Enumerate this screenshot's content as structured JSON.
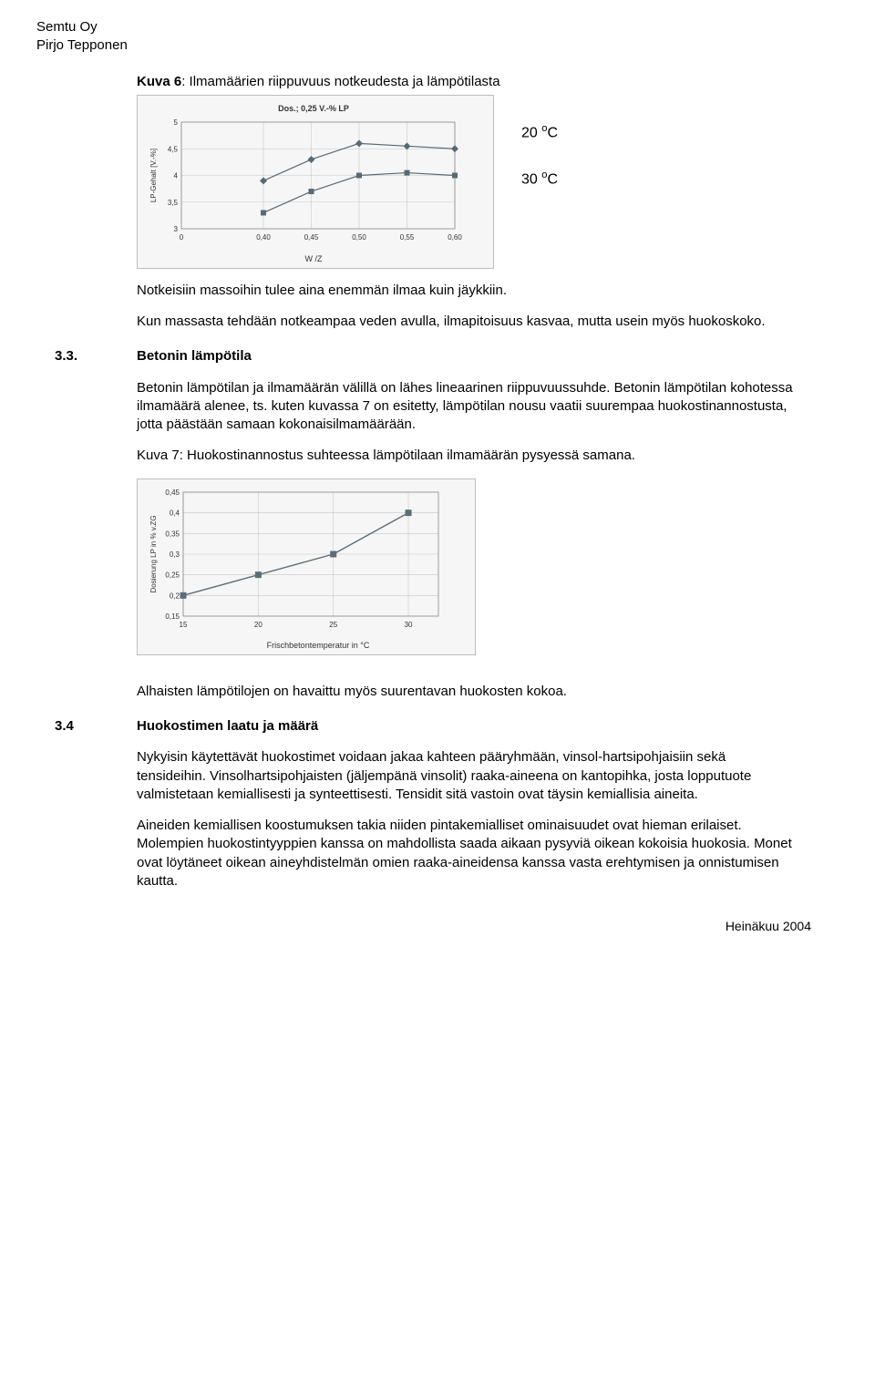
{
  "header": {
    "company": "Semtu Oy",
    "author": "Pirjo Tepponen"
  },
  "kuva6": {
    "label": "Kuva 6",
    "title": ": Ilmamäärien riippuvuus notkeudesta ja lämpötilasta",
    "subtitle": "Dos.; 0,25 V.-% LP",
    "ylabel": "LP-Gehalt [V.-%]",
    "xlabel": "W /Z",
    "xlim": [
      0,
      0.6
    ],
    "ylim": [
      3,
      5
    ],
    "xticks": [
      "0",
      "0,40",
      "0,45",
      "0,50",
      "0,55",
      "0,60"
    ],
    "yticks": [
      "3",
      "3,5",
      "4",
      "4,5",
      "5"
    ],
    "series_a": {
      "marker": "diamond",
      "color": "#556b76",
      "points": [
        [
          0.4,
          3.9
        ],
        [
          0.45,
          4.3
        ],
        [
          0.5,
          4.6
        ],
        [
          0.55,
          4.55
        ],
        [
          0.6,
          4.5
        ]
      ]
    },
    "series_b": {
      "marker": "square",
      "color": "#556b76",
      "points": [
        [
          0.4,
          3.3
        ],
        [
          0.45,
          3.7
        ],
        [
          0.5,
          4.0
        ],
        [
          0.55,
          4.05
        ],
        [
          0.6,
          4.0
        ]
      ]
    },
    "bg": "#f6f6f6",
    "grid": "#c8c8c8",
    "annot": {
      "a": "20 ",
      "b": "30 ",
      "unitC": "C",
      "sup": "o"
    }
  },
  "paras": {
    "p1": "Notkeisiin massoihin tulee aina enemmän ilmaa kuin jäykkiin.",
    "p2": "Kun massasta tehdään notkeampaa veden avulla, ilmapitoisuus kasvaa, mutta usein myös huokoskoko.",
    "p3": "Betonin lämpötilan ja ilmamäärän välillä on lähes lineaarinen riippuvuussuhde. Betonin lämpötilan kohotessa ilmamäärä alenee, ts. kuten kuvassa 7 on esitetty, lämpötilan nousu vaatii suurempaa huokostinannostusta, jotta päästään samaan kokonaisilmamäärään.",
    "p4": "Kuva 7: Huokostinannostus suhteessa lämpötilaan ilmamäärän pysyessä samana.",
    "p5": "Alhaisten lämpötilojen on havaittu myös suurentavan huokosten kokoa.",
    "p6": "Nykyisin käytettävät huokostimet voidaan jakaa kahteen pääryhmään, vinsol-hartsipohjaisiin sekä tensideihin. Vinsolhartsipohjaisten (jäljempänä vinsolit) raaka-aineena on kantopihka, josta lopputuote valmistetaan kemiallisesti ja synteettisesti. Tensidit sitä vastoin ovat täysin kemiallisia aineita.",
    "p7": "Aineiden kemiallisen koostumuksen takia niiden pintakemialliset ominaisuudet ovat hieman erilaiset. Molempien huokostintyyppien kanssa on mahdollista saada aikaan pysyviä oikean kokoisia huokosia. Monet ovat löytäneet oikean aineyhdistelmän omien raaka-aineidensa kanssa vasta erehtymisen ja onnistumisen kautta."
  },
  "sec33": {
    "num": "3.3.",
    "title": "Betonin lämpötila"
  },
  "sec34": {
    "num": "3.4",
    "title": "Huokostimen laatu ja määrä"
  },
  "kuva7": {
    "ylabel": "Dosierung LP in % v.ZG",
    "xlabel": "Frischbetontemperatur in °C",
    "xlim": [
      15,
      32
    ],
    "ylim": [
      0.15,
      0.45
    ],
    "xticks": [
      "15",
      "20",
      "25",
      "30"
    ],
    "yticks": [
      "0,15",
      "0,2",
      "0,25",
      "0,3",
      "0,35",
      "0,4",
      "0,45"
    ],
    "series": {
      "marker": "square",
      "color": "#5a6e78",
      "points": [
        [
          15,
          0.2
        ],
        [
          20,
          0.25
        ],
        [
          25,
          0.3
        ],
        [
          30,
          0.4
        ]
      ]
    },
    "bg": "#f6f6f6",
    "grid": "#c8c8c8"
  },
  "footer": "Heinäkuu 2004"
}
